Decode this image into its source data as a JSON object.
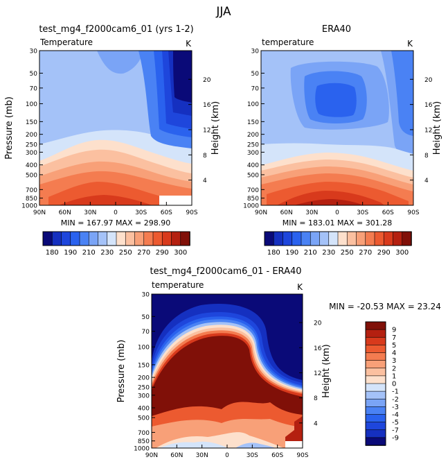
{
  "figure_title": "JJA",
  "chart_data": [
    {
      "type": "heatmap",
      "id": "model",
      "title": "test_mg4_f2000cam6_01 (yrs 1-2)",
      "subtitle_left": "Temperature",
      "subtitle_right": "K",
      "ylabel": "Pressure (mb)",
      "ylabel_right": "Height (km)",
      "x_ticks": [
        "90N",
        "60N",
        "30N",
        "0",
        "30S",
        "60S",
        "90S"
      ],
      "y_ticks": [
        "30",
        "50",
        "70",
        "100",
        "150",
        "200",
        "250",
        "300",
        "400",
        "500",
        "700",
        "850",
        "1000"
      ],
      "height_ticks": [
        "20",
        "16",
        "12",
        "8",
        "4"
      ],
      "stats": "MIN = 167.97   MAX = 298.90",
      "levels": [
        170,
        180,
        185,
        190,
        200,
        210,
        220,
        230,
        240,
        250,
        260,
        270,
        280,
        290,
        295,
        300
      ],
      "colorbar_labels": [
        "180",
        "190",
        "210",
        "230",
        "250",
        "270",
        "290",
        "300"
      ],
      "palette": [
        "#0a0a78",
        "#1530c0",
        "#1e46dc",
        "#2a62ee",
        "#4a82f4",
        "#7aa4f6",
        "#a4c2f8",
        "#d4e4fa",
        "#fde0cc",
        "#fbc0a0",
        "#f8a078",
        "#f47c50",
        "#ec5a30",
        "#d83a1c",
        "#b42010",
        "#801008"
      ]
    },
    {
      "type": "heatmap",
      "id": "obs",
      "title": "ERA40",
      "subtitle_left": "temperature",
      "subtitle_right": "K",
      "ylabel_right": "Height (km)",
      "x_ticks": [
        "90N",
        "60N",
        "30N",
        "0",
        "30S",
        "60S",
        "90S"
      ],
      "y_ticks": [
        "30",
        "50",
        "70",
        "100",
        "150",
        "200",
        "250",
        "300",
        "400",
        "500",
        "700",
        "850",
        "1000"
      ],
      "height_ticks": [
        "20",
        "16",
        "12",
        "8",
        "4"
      ],
      "stats": "MIN = 183.01   MAX = 301.28",
      "colorbar_labels": [
        "180",
        "190",
        "210",
        "230",
        "250",
        "270",
        "290",
        "300"
      ]
    },
    {
      "type": "heatmap",
      "id": "diff",
      "title": "test_mg4_f2000cam6_01 - ERA40",
      "subtitle_left": "temperature",
      "subtitle_right": "K",
      "ylabel": "Pressure (mb)",
      "ylabel_right": "Height (km)",
      "x_ticks": [
        "90N",
        "60N",
        "30N",
        "0",
        "30S",
        "60S",
        "90S"
      ],
      "y_ticks": [
        "30",
        "50",
        "70",
        "100",
        "150",
        "200",
        "250",
        "300",
        "400",
        "500",
        "700",
        "850",
        "1000"
      ],
      "height_ticks": [
        "20",
        "16",
        "12",
        "8",
        "4"
      ],
      "stats": "MIN = -20.53   MAX =  23.24",
      "levels": [
        -9,
        -7,
        -5,
        -4,
        -3,
        -2,
        -1,
        0,
        1,
        2,
        3,
        4,
        5,
        7,
        9
      ],
      "colorbar_labels": [
        "9",
        "7",
        "5",
        "4",
        "3",
        "2",
        "1",
        "0",
        "-1",
        "-2",
        "-3",
        "-4",
        "-5",
        "-7",
        "-9"
      ],
      "palette": [
        "#0a0a78",
        "#1530c0",
        "#1e46dc",
        "#2a62ee",
        "#4a82f4",
        "#7aa4f6",
        "#a4c2f8",
        "#d4e4fa",
        "#fde0cc",
        "#fbc0a0",
        "#f8a078",
        "#f47c50",
        "#ec5a30",
        "#d83a1c",
        "#b42010",
        "#801008"
      ]
    }
  ]
}
